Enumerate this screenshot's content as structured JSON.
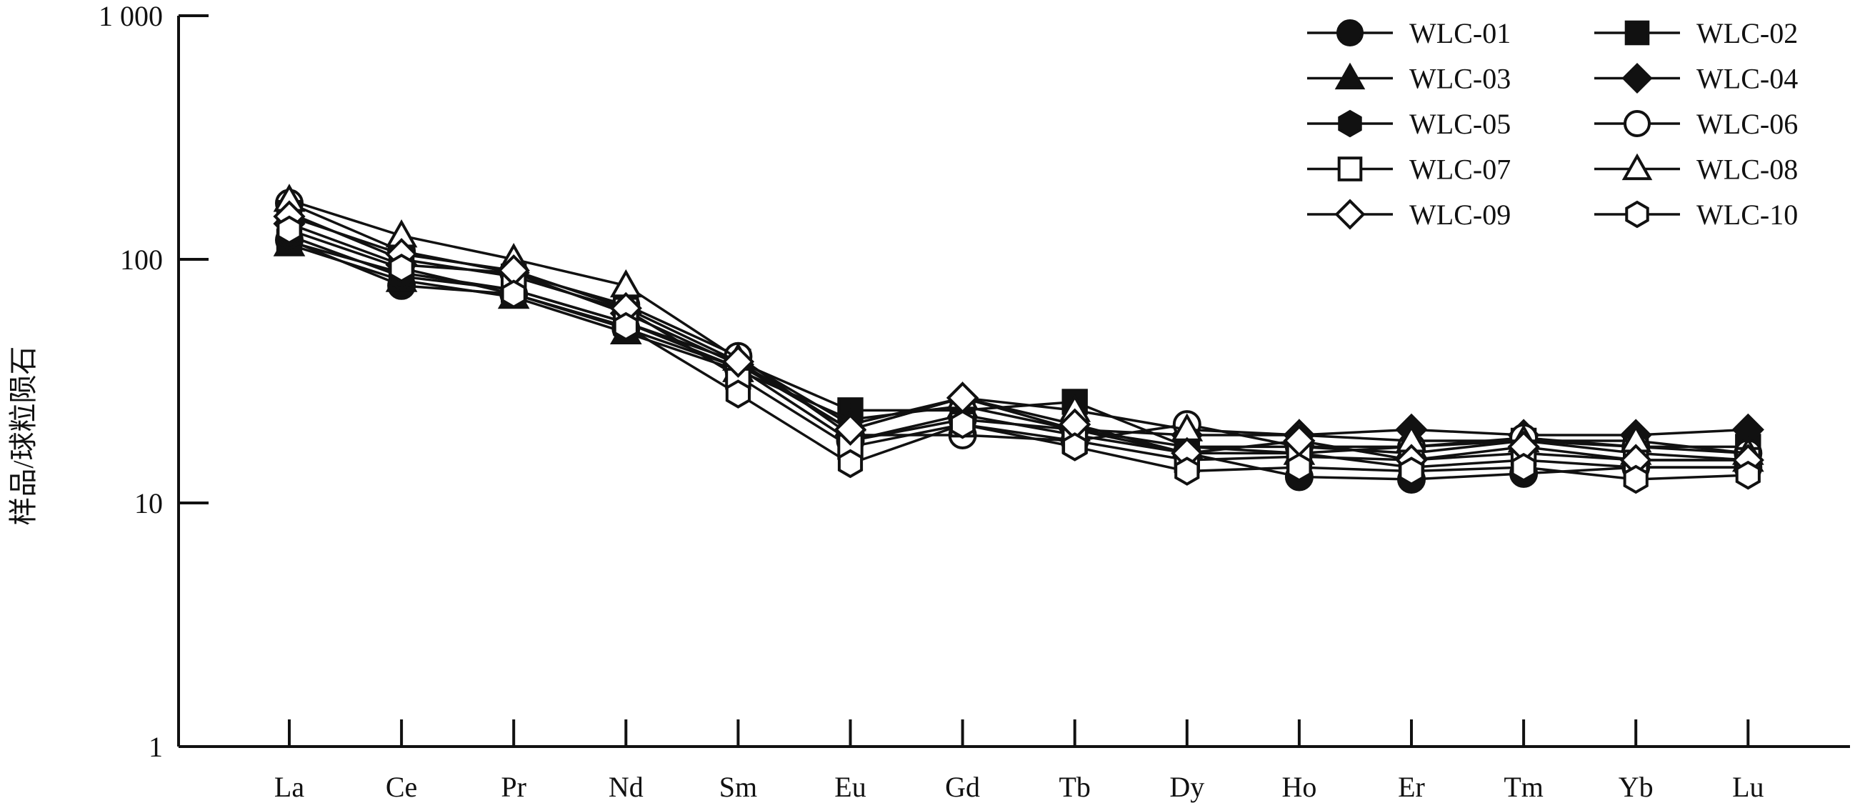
{
  "chart_data": {
    "type": "line",
    "ylabel": "样品/球粒陨石",
    "xlabel": "",
    "yscale": "log",
    "ylim": [
      1,
      1000
    ],
    "yticks": [
      {
        "value": 1,
        "label": "1"
      },
      {
        "value": 10,
        "label": "10"
      },
      {
        "value": 100,
        "label": "100"
      },
      {
        "value": 1000,
        "label": "1 000"
      }
    ],
    "categories": [
      "La",
      "Ce",
      "Pr",
      "Nd",
      "Sm",
      "Eu",
      "Gd",
      "Tb",
      "Dy",
      "Ho",
      "Er",
      "Tm",
      "Yb",
      "Lu"
    ],
    "grid": false,
    "legend_position": "top-right",
    "series": [
      {
        "name": "WLC-01",
        "marker": "circle",
        "filled": true,
        "values": [
          120,
          78,
          72,
          52,
          36,
          18,
          22,
          20,
          16,
          12.8,
          12.5,
          13.2,
          14,
          14
        ]
      },
      {
        "name": "WLC-02",
        "marker": "square",
        "filled": true,
        "values": [
          118,
          88,
          75,
          55,
          38,
          24,
          24,
          26,
          17,
          17,
          16,
          18,
          17,
          17
        ]
      },
      {
        "name": "WLC-03",
        "marker": "triangle",
        "filled": true,
        "values": [
          115,
          82,
          70,
          50,
          35,
          22,
          25,
          20,
          17,
          16,
          17,
          18,
          16,
          15
        ]
      },
      {
        "name": "WLC-04",
        "marker": "diamond",
        "filled": true,
        "values": [
          140,
          95,
          88,
          60,
          37,
          20,
          27,
          20,
          19,
          19,
          20,
          19,
          19,
          20
        ]
      },
      {
        "name": "WLC-05",
        "marker": "hexagon",
        "filled": true,
        "values": [
          125,
          85,
          75,
          55,
          36,
          18,
          23,
          19,
          16,
          16,
          14,
          15,
          14,
          14
        ]
      },
      {
        "name": "WLC-06",
        "marker": "circle",
        "filled": false,
        "values": [
          170,
          108,
          88,
          65,
          40,
          19,
          19,
          18,
          21,
          17,
          17,
          18.5,
          17,
          16
        ]
      },
      {
        "name": "WLC-07",
        "marker": "square",
        "filled": false,
        "values": [
          155,
          100,
          85,
          62,
          33,
          17,
          21,
          18,
          15,
          15.5,
          15,
          16,
          15,
          15
        ]
      },
      {
        "name": "WLC-08",
        "marker": "triangle",
        "filled": false,
        "values": [
          175,
          125,
          100,
          78,
          39,
          21,
          27,
          24,
          20,
          19,
          18,
          18,
          18,
          16
        ]
      },
      {
        "name": "WLC-09",
        "marker": "diamond",
        "filled": false,
        "values": [
          150,
          105,
          90,
          63,
          38,
          20,
          27,
          21,
          16,
          18,
          15,
          17,
          15,
          15
        ]
      },
      {
        "name": "WLC-10",
        "marker": "hexagon",
        "filled": false,
        "values": [
          132,
          92,
          72,
          53,
          28,
          14.5,
          21,
          17,
          13.5,
          14,
          13.5,
          14,
          12.5,
          13
        ]
      }
    ]
  }
}
